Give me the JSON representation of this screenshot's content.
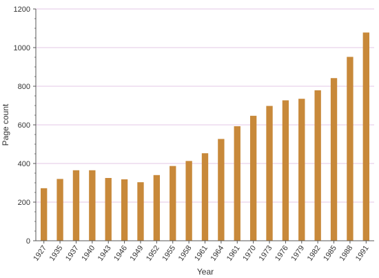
{
  "chart_data": {
    "type": "bar",
    "title": "",
    "xlabel": "Year",
    "ylabel": "Page count",
    "ylim": [
      0,
      1200
    ],
    "yticks": [
      0,
      200,
      400,
      600,
      800,
      1000,
      1200
    ],
    "grid": "horizontal",
    "bar_color": "#c8893a",
    "gridline_color": "#e3c7e6",
    "axis_color": "#555555",
    "categories": [
      "1927",
      "1935",
      "1937",
      "1940",
      "1943",
      "1946",
      "1949",
      "1952",
      "1955",
      "1958",
      "1961",
      "1964",
      "1961",
      "1970",
      "1973",
      "1976",
      "1979",
      "1982",
      "1985",
      "1988",
      "1991"
    ],
    "values": [
      272,
      320,
      365,
      365,
      325,
      318,
      303,
      340,
      387,
      413,
      453,
      527,
      593,
      647,
      698,
      727,
      735,
      779,
      842,
      952,
      1078
    ]
  }
}
